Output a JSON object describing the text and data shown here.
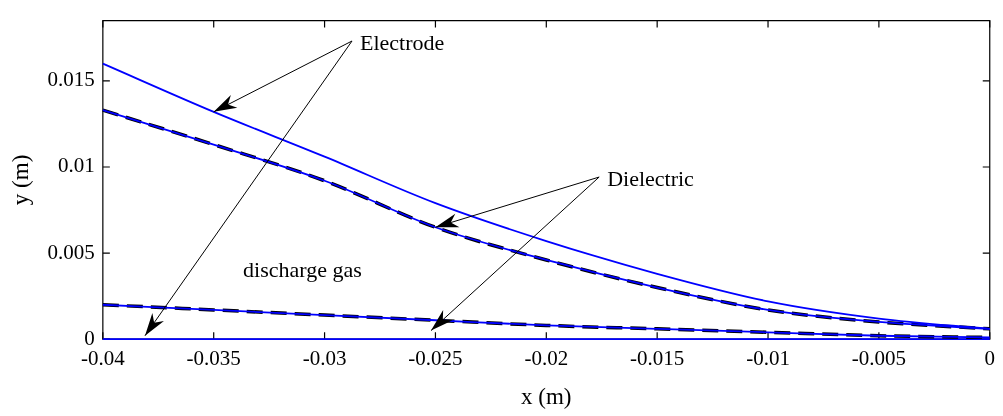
{
  "chart_data": {
    "type": "line",
    "xlabel": "x (m)",
    "ylabel": "y (m)",
    "xlim": [
      -0.04,
      0
    ],
    "xticks": [
      -0.04,
      -0.035,
      -0.03,
      -0.025,
      -0.02,
      -0.015,
      -0.01,
      -0.005,
      0
    ],
    "ylim": [
      0,
      0.0185
    ],
    "yticks": [
      0,
      0.005,
      0.01,
      0.015
    ],
    "grid": false,
    "legend": false,
    "marker": "none",
    "x": [
      -0.04,
      -0.035,
      -0.03,
      -0.025,
      -0.02,
      -0.015,
      -0.01,
      -0.005,
      0
    ],
    "series": [
      {
        "color": "#0000ff",
        "line_style": "solid",
        "values": [
          0.016,
          0.0132,
          0.0106,
          0.0079,
          0.0057,
          0.0038,
          0.0022,
          0.0012,
          0.0006
        ]
      },
      {
        "color": "#0000ff",
        "line_style": "solid",
        "values": [
          0.0133,
          0.0113,
          0.0092,
          0.0065,
          0.0046,
          0.003,
          0.0017,
          0.001,
          0.0006
        ]
      },
      {
        "color": "#000000",
        "line_style": "dashed",
        "values": [
          0.0133,
          0.0113,
          0.0092,
          0.0065,
          0.0046,
          0.003,
          0.0017,
          0.001,
          0.0006
        ]
      },
      {
        "color": "#0000ff",
        "line_style": "solid",
        "values": [
          0.002,
          0.0017,
          0.0014,
          0.0011,
          0.0008,
          0.0006,
          0.0004,
          0.0002,
          0.0001
        ]
      },
      {
        "color": "#000000",
        "line_style": "dashed",
        "values": [
          0.002,
          0.0017,
          0.0014,
          0.0011,
          0.0008,
          0.0006,
          0.0004,
          0.0002,
          0.0001
        ]
      },
      {
        "color": "#0000ff",
        "line_style": "solid",
        "values": [
          0,
          0,
          0,
          0,
          0,
          0,
          0,
          0,
          0
        ]
      }
    ],
    "annotations": [
      {
        "text": "Electrode",
        "x": -0.035,
        "y": 0.0132
      },
      {
        "text": "Dielectric",
        "x": -0.025,
        "y": 0.0065
      },
      "discharge gas"
    ]
  }
}
